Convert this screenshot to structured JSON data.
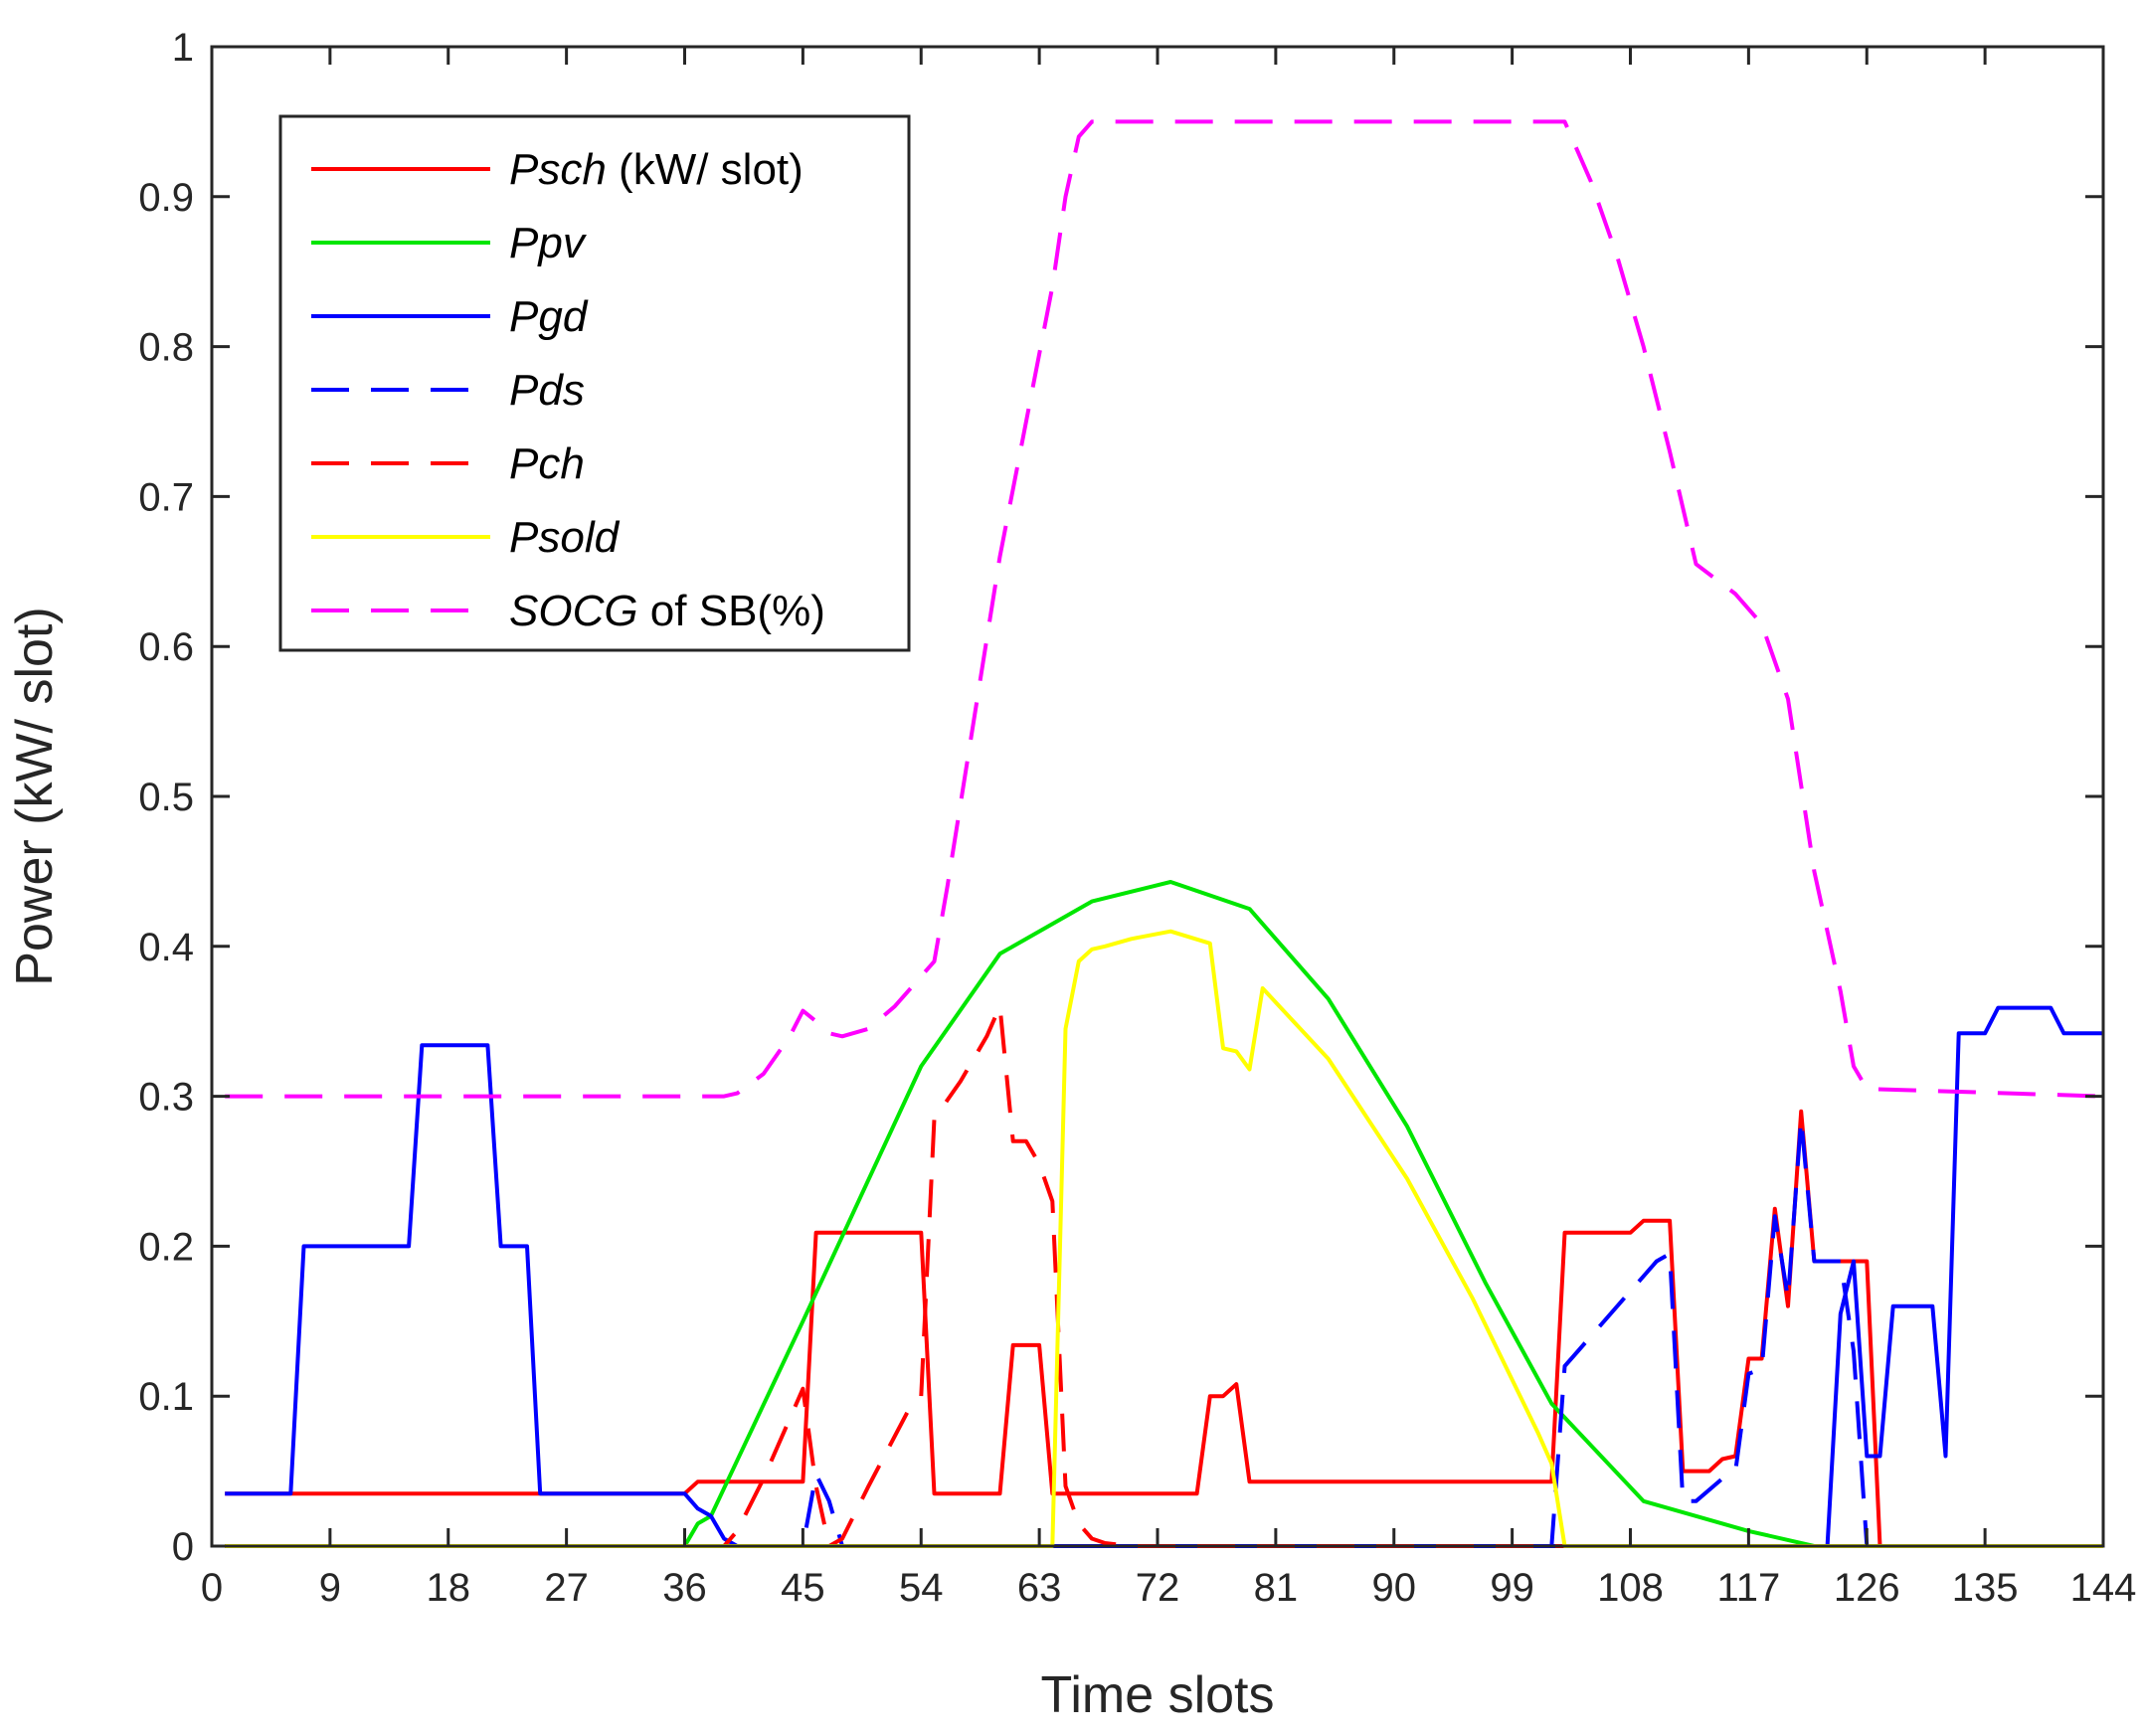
{
  "chart_data": {
    "type": "line",
    "title": "",
    "xlabel": "Time slots",
    "ylabel": "Power (kW/ slot)",
    "xlim": [
      0,
      144
    ],
    "ylim": [
      0,
      1
    ],
    "xticks": [
      0,
      9,
      18,
      27,
      36,
      45,
      54,
      63,
      72,
      81,
      90,
      99,
      108,
      117,
      126,
      135,
      144
    ],
    "yticks": [
      0,
      0.1,
      0.2,
      0.3,
      0.4,
      0.5,
      0.6,
      0.7,
      0.8,
      0.9,
      1
    ],
    "ytick_labels": [
      "0",
      "0.1",
      "0.2",
      "0.3",
      "0.4",
      "0.5",
      "0.6",
      "0.7",
      "0.8",
      "0.9",
      "1"
    ],
    "grid": false,
    "legend_position": "top-left",
    "series": [
      {
        "name": "Psch",
        "label_suffix": " (kW/ slot)",
        "color": "#ff0000",
        "dash": "solid",
        "x": [
          1,
          36,
          37,
          45,
          46,
          54,
          55,
          60,
          61,
          63,
          64,
          72,
          75,
          76,
          77,
          78,
          79,
          80,
          81,
          102,
          103,
          108,
          109,
          111,
          112,
          114,
          115,
          116,
          117,
          118,
          119,
          120,
          121,
          122,
          123,
          126,
          127,
          144
        ],
        "y": [
          0.035,
          0.035,
          0.043,
          0.043,
          0.209,
          0.209,
          0.035,
          0.035,
          0.134,
          0.134,
          0.035,
          0.035,
          0.035,
          0.1,
          0.1,
          0.108,
          0.043,
          0.043,
          0.043,
          0.043,
          0.209,
          0.209,
          0.217,
          0.217,
          0.05,
          0.05,
          0.058,
          0.06,
          0.125,
          0.125,
          0.225,
          0.16,
          0.29,
          0.19,
          0.19,
          0.19,
          0.0,
          0.0
        ]
      },
      {
        "name": "Ppv",
        "label_suffix": "",
        "color": "#00e600",
        "dash": "solid",
        "x": [
          1,
          36,
          37,
          38,
          45,
          54,
          60,
          67,
          73,
          79,
          85,
          91,
          97,
          102,
          109,
          117,
          122,
          144
        ],
        "y": [
          0.0,
          0.0,
          0.015,
          0.02,
          0.15,
          0.32,
          0.395,
          0.43,
          0.443,
          0.425,
          0.365,
          0.28,
          0.175,
          0.095,
          0.03,
          0.01,
          0.0,
          0.0
        ]
      },
      {
        "name": "Pgd",
        "label_suffix": "",
        "color": "#0000ff",
        "dash": "solid",
        "x": [
          1,
          6,
          7,
          15,
          16,
          20,
          21,
          22,
          24,
          25,
          36,
          37,
          38,
          39,
          40,
          64,
          65,
          102,
          103,
          122,
          123,
          124,
          125,
          126,
          127,
          128,
          129,
          131,
          132,
          133,
          135,
          136,
          140,
          141,
          144
        ],
        "y": [
          0.035,
          0.035,
          0.2,
          0.2,
          0.334,
          0.334,
          0.334,
          0.2,
          0.2,
          0.035,
          0.035,
          0.025,
          0.02,
          0.005,
          0.0,
          0.0,
          0.0,
          0.0,
          0.0,
          0.0,
          0.0,
          0.155,
          0.19,
          0.06,
          0.06,
          0.16,
          0.16,
          0.16,
          0.06,
          0.342,
          0.342,
          0.359,
          0.359,
          0.342,
          0.342
        ]
      },
      {
        "name": "Pds",
        "label_suffix": "",
        "color": "#0000ff",
        "dash": "dashed",
        "x": [
          1,
          45,
          46,
          47,
          48,
          102,
          103,
          104,
          108,
          110,
          111,
          112,
          113,
          115,
          116,
          117,
          118,
          119,
          120,
          121,
          122,
          123,
          124,
          125,
          126,
          144
        ],
        "y": [
          0.0,
          0.0,
          0.048,
          0.03,
          0.0,
          0.0,
          0.12,
          0.13,
          0.17,
          0.19,
          0.195,
          0.03,
          0.03,
          0.045,
          0.05,
          0.115,
          0.118,
          0.22,
          0.165,
          0.285,
          0.19,
          0.19,
          0.19,
          0.13,
          0.0,
          0.0
        ]
      },
      {
        "name": "Pch",
        "label_suffix": "",
        "color": "#ff0000",
        "dash": "dashed",
        "x": [
          1,
          39,
          40,
          42,
          45,
          46,
          47,
          48,
          50,
          53,
          54,
          55,
          57,
          59,
          60,
          61,
          62,
          63,
          64,
          65,
          66,
          67,
          68,
          70,
          144
        ],
        "y": [
          0.0,
          0.0,
          0.01,
          0.045,
          0.105,
          0.04,
          0.0,
          0.005,
          0.04,
          0.09,
          0.1,
          0.285,
          0.31,
          0.34,
          0.36,
          0.27,
          0.27,
          0.255,
          0.23,
          0.04,
          0.015,
          0.005,
          0.002,
          0.0,
          0.0
        ]
      },
      {
        "name": "Psold",
        "label_suffix": "",
        "color": "#ffff00",
        "dash": "solid",
        "x": [
          1,
          63,
          64,
          65,
          66,
          67,
          68,
          70,
          73,
          76,
          77,
          78,
          79,
          80,
          85,
          91,
          96,
          101,
          102,
          103,
          144
        ],
        "y": [
          0.0,
          0.0,
          0.0,
          0.345,
          0.39,
          0.398,
          0.4,
          0.405,
          0.41,
          0.402,
          0.332,
          0.33,
          0.318,
          0.372,
          0.325,
          0.245,
          0.165,
          0.075,
          0.055,
          0.0,
          0.0
        ]
      },
      {
        "name": "SOCG",
        "label_suffix": " of SB(%)",
        "color": "#ff00ff",
        "dash": "dashed",
        "x": [
          1,
          39,
          40,
          42,
          44,
          45,
          46,
          47,
          48,
          50,
          52,
          54,
          55,
          56,
          58,
          60,
          62,
          64,
          65,
          66,
          67,
          102,
          103,
          105,
          107,
          109,
          111,
          113,
          116,
          118,
          120,
          122,
          124,
          125,
          126,
          144
        ],
        "y": [
          0.3,
          0.3,
          0.302,
          0.315,
          0.34,
          0.357,
          0.35,
          0.342,
          0.34,
          0.345,
          0.36,
          0.38,
          0.39,
          0.44,
          0.55,
          0.66,
          0.75,
          0.84,
          0.9,
          0.94,
          0.95,
          0.95,
          0.95,
          0.91,
          0.86,
          0.8,
          0.73,
          0.655,
          0.635,
          0.615,
          0.565,
          0.45,
          0.37,
          0.32,
          0.305,
          0.3
        ]
      }
    ]
  }
}
